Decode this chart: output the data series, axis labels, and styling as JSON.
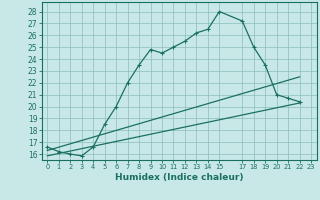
{
  "bg_color": "#c8e8e8",
  "grid_color": "#8cbcbc",
  "line_color": "#1a7060",
  "xlabel": "Humidex (Indice chaleur)",
  "xlim": [
    -0.5,
    23.5
  ],
  "ylim": [
    15.5,
    28.8
  ],
  "yticks": [
    16,
    17,
    18,
    19,
    20,
    21,
    22,
    23,
    24,
    25,
    26,
    27,
    28
  ],
  "xticks": [
    0,
    1,
    2,
    3,
    4,
    5,
    6,
    7,
    8,
    9,
    10,
    11,
    12,
    13,
    14,
    15,
    17,
    18,
    19,
    20,
    21,
    22,
    23
  ],
  "line1_x": [
    0,
    1,
    2,
    3,
    4,
    5,
    6,
    7,
    8,
    9,
    10,
    11,
    12,
    13,
    14,
    15,
    17,
    18,
    19,
    20,
    21,
    22
  ],
  "line1_y": [
    16.6,
    16.2,
    16.0,
    15.85,
    16.6,
    18.5,
    20.0,
    22.0,
    23.5,
    24.8,
    24.5,
    25.0,
    25.5,
    26.2,
    26.5,
    28.0,
    27.2,
    25.0,
    23.5,
    21.0,
    20.7,
    20.4
  ],
  "line2_x": [
    0,
    22
  ],
  "line2_y": [
    16.3,
    22.5
  ],
  "line3_x": [
    0,
    22
  ],
  "line3_y": [
    15.85,
    20.3
  ],
  "marker": "+",
  "markersize": 3.5,
  "linewidth": 0.9
}
